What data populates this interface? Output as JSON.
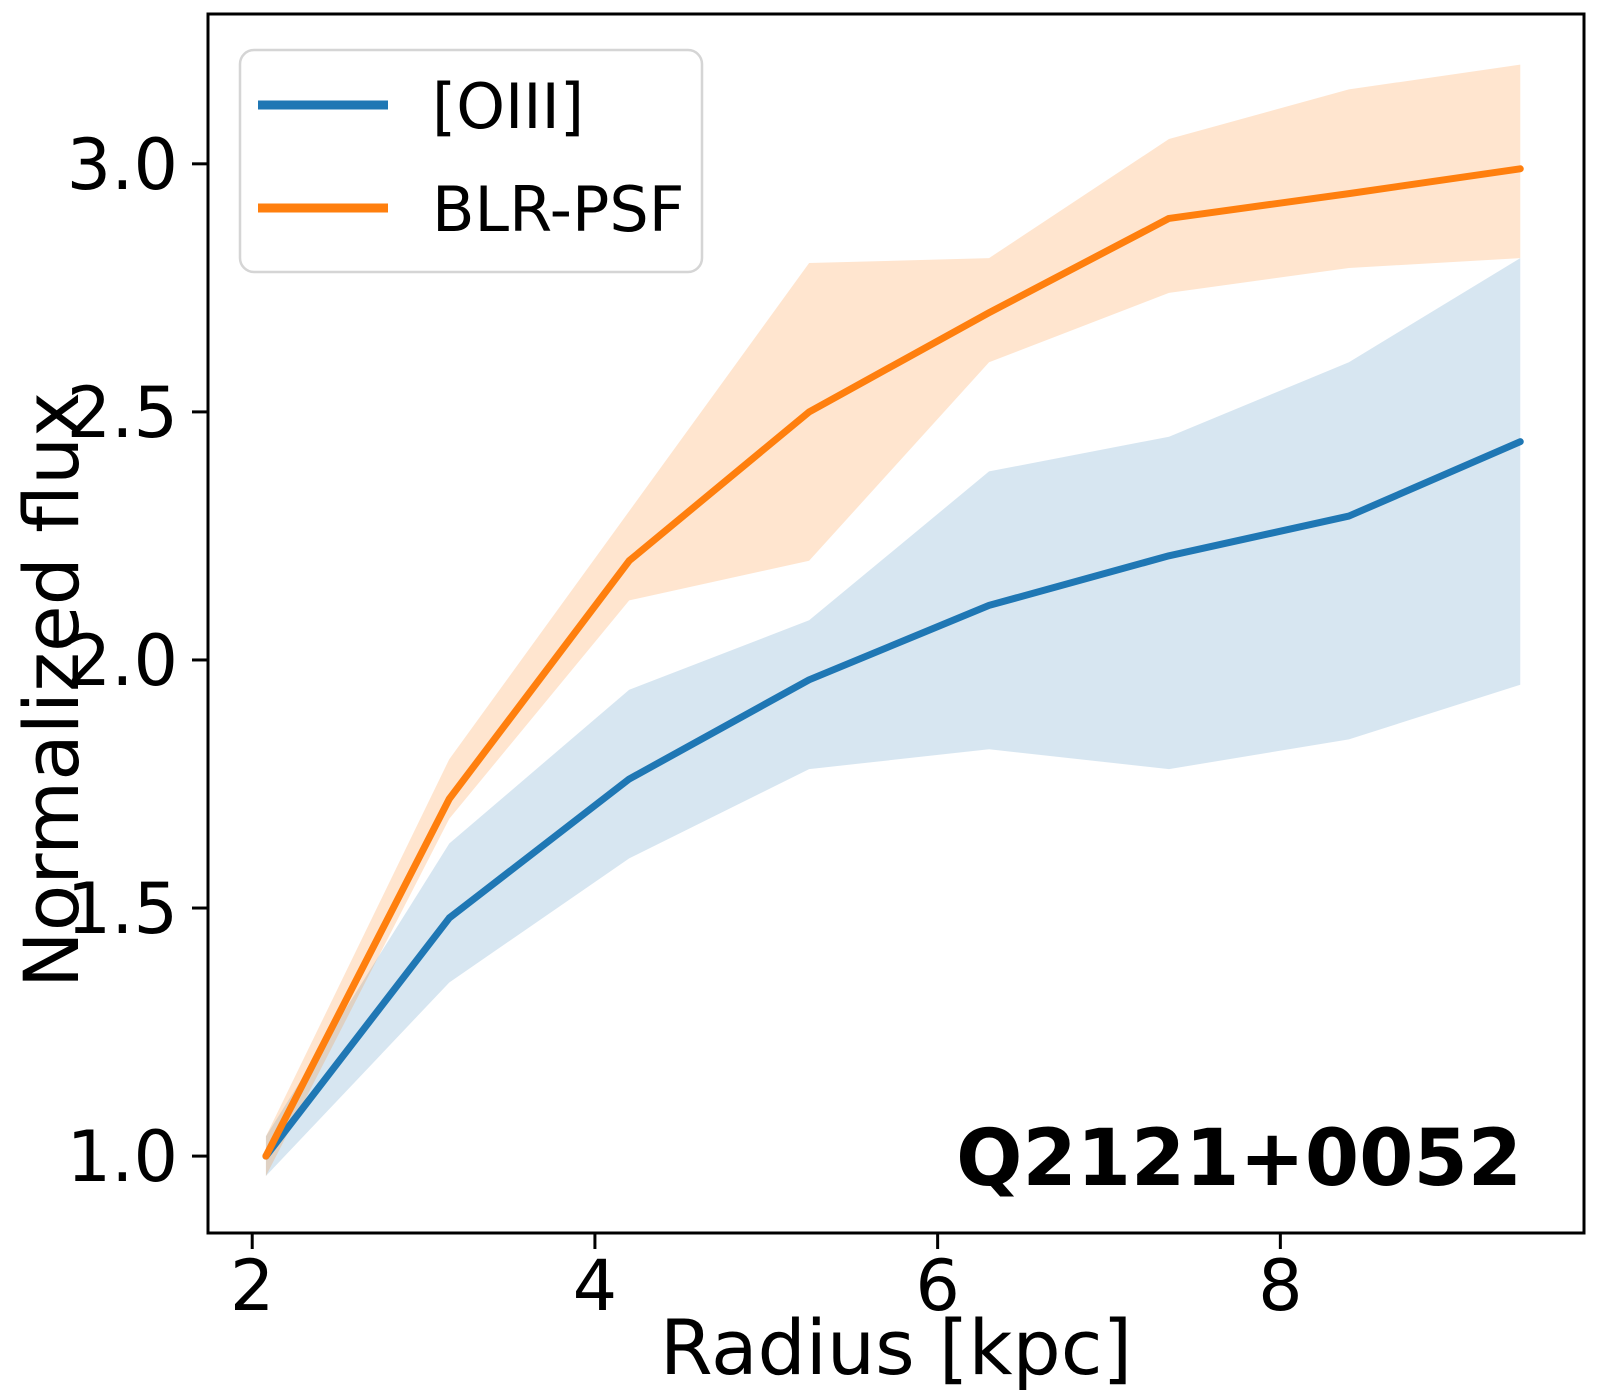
{
  "chart_data": {
    "type": "line",
    "title": "",
    "xlabel": "Radius [kpc]",
    "ylabel": "Normalized flux",
    "annotation": "Q2121+0052",
    "grid": false,
    "legend_position": "upper left",
    "xlim": [
      1.742,
      9.772
    ],
    "ylim": [
      0.845,
      3.302
    ],
    "xticks": [
      2,
      4,
      6,
      8
    ],
    "xtick_labels": [
      "2",
      "4",
      "6",
      "8"
    ],
    "yticks": [
      1.0,
      1.5,
      2.0,
      2.5,
      3.0
    ],
    "ytick_labels": [
      "1.0",
      "1.5",
      "2.0",
      "2.5",
      "3.0"
    ],
    "x": [
      2.08,
      3.15,
      4.2,
      5.25,
      6.3,
      7.35,
      8.4,
      9.4
    ],
    "series": [
      {
        "name": "[OIII]",
        "color": "#1f77b4",
        "band_alpha": 0.18,
        "values": [
          1.0,
          1.48,
          1.76,
          1.96,
          2.11,
          2.21,
          2.29,
          2.44
        ],
        "band_upper": [
          1.04,
          1.63,
          1.94,
          2.08,
          2.38,
          2.45,
          2.6,
          2.81
        ],
        "band_lower": [
          0.96,
          1.35,
          1.6,
          1.78,
          1.82,
          1.78,
          1.84,
          1.95
        ]
      },
      {
        "name": "BLR-PSF",
        "color": "#ff7f0e",
        "band_alpha": 0.2,
        "values": [
          1.0,
          1.72,
          2.2,
          2.5,
          2.7,
          2.89,
          2.94,
          2.99
        ],
        "band_upper": [
          1.04,
          1.8,
          2.3,
          2.8,
          2.81,
          3.05,
          3.15,
          3.2
        ],
        "band_lower": [
          0.96,
          1.68,
          2.12,
          2.2,
          2.6,
          2.74,
          2.79,
          2.81
        ]
      }
    ]
  }
}
